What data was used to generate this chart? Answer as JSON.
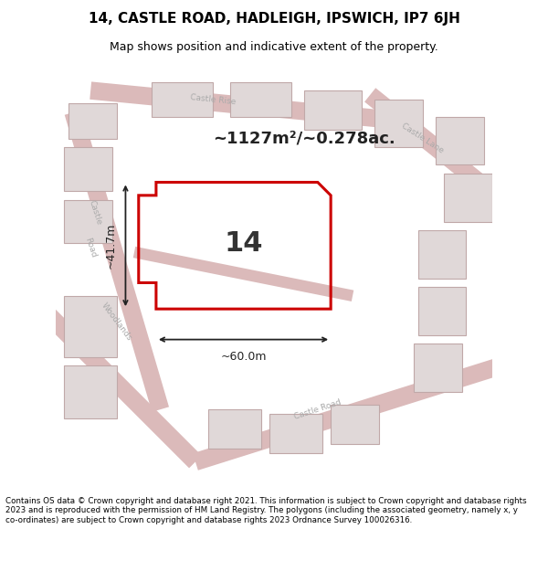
{
  "title_line1": "14, CASTLE ROAD, HADLEIGH, IPSWICH, IP7 6JH",
  "title_line2": "Map shows position and indicative extent of the property.",
  "footer_text": "Contains OS data © Crown copyright and database right 2021. This information is subject to Crown copyright and database rights 2023 and is reproduced with the permission of HM Land Registry. The polygons (including the associated geometry, namely x, y co-ordinates) are subject to Crown copyright and database rights 2023 Ordnance Survey 100026316.",
  "area_label": "~1127m²/~0.278ac.",
  "plot_number": "14",
  "dim_width": "~60.0m",
  "dim_height": "~41.7m",
  "bg_map_color": "#f2eded",
  "bg_color": "#ffffff",
  "road_color": "#dbbaba",
  "building_fill": "#e0d8d8",
  "building_stroke": "#c0a8a8",
  "highlight_stroke": "#cc0000",
  "road_label_color": "#aaaaaa"
}
